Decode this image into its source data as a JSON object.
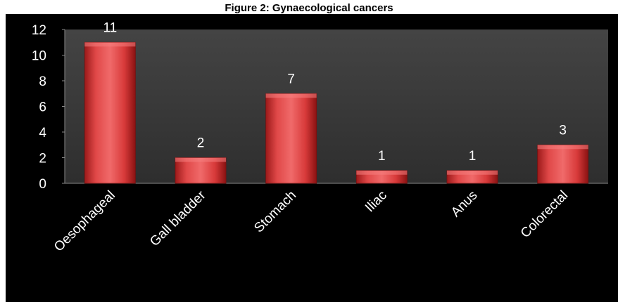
{
  "chart_data": {
    "type": "bar",
    "title": "Figure 2: Gynaecological cancers",
    "xlabel": "",
    "ylabel": "",
    "categories": [
      "Oesophageal",
      "Gall bladder",
      "Stomach",
      "Iliac",
      "Anus",
      "Colorectal"
    ],
    "values": [
      11,
      2,
      7,
      1,
      1,
      3
    ],
    "ylim": [
      0,
      12
    ],
    "yticks": [
      "0",
      "2",
      "4",
      "6",
      "8",
      "10",
      "12"
    ],
    "data_labels": [
      "11",
      "2",
      "7",
      "1",
      "1",
      "3"
    ],
    "grid": false,
    "legend": "none",
    "colors": {
      "background": "#000000",
      "plot_area": "#3a3a3a",
      "bar": "#d23a3a",
      "bar_light": "#ef6a6a",
      "bar_dark": "#8f1414",
      "text": "#ffffff"
    }
  }
}
